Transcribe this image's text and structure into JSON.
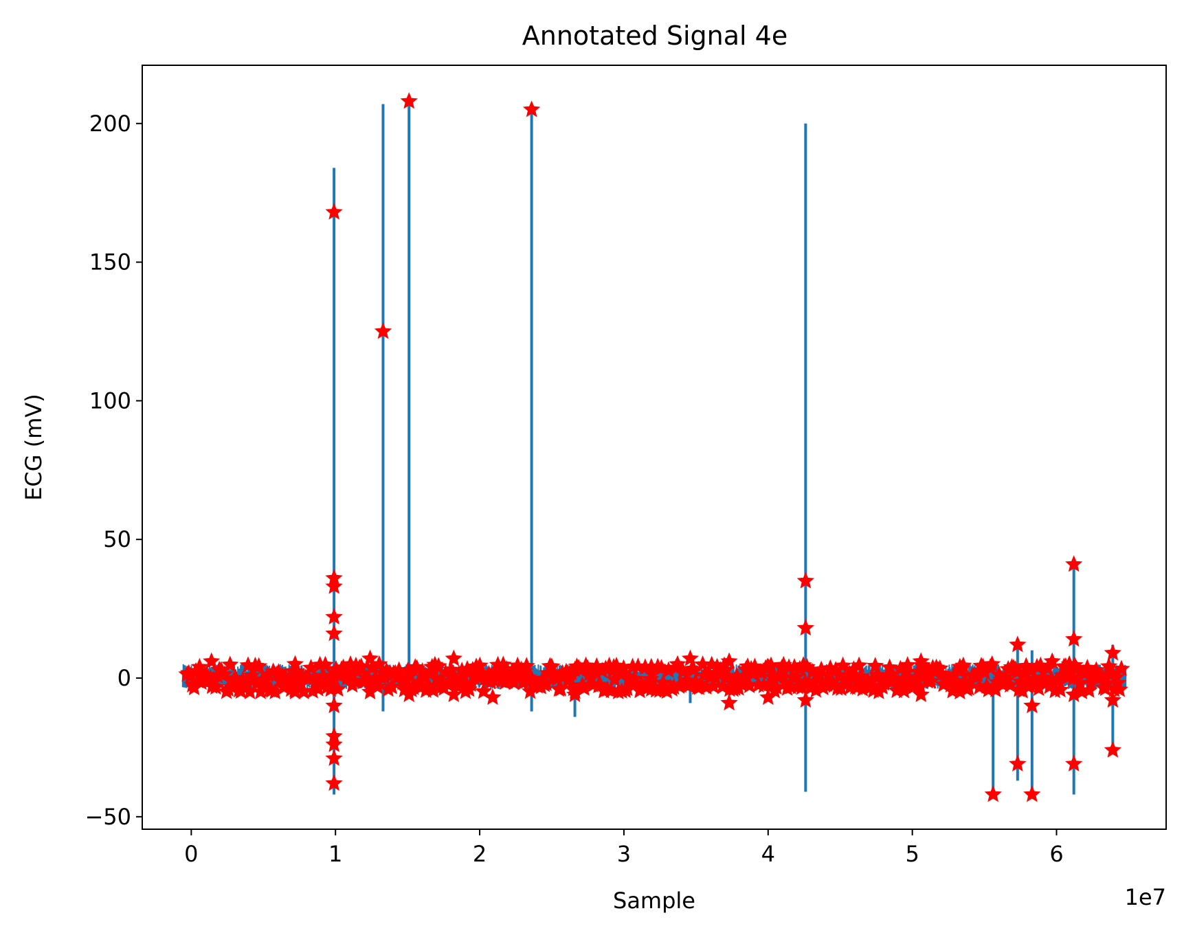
{
  "chart_data": {
    "type": "line",
    "title": "Annotated Signal 4e",
    "xlabel": "Sample",
    "ylabel": "ECG (mV)",
    "x_offset_label": "1e7",
    "x_scale": 10000000,
    "xlim": [
      -3400000,
      67600000
    ],
    "ylim": [
      -54.5,
      221
    ],
    "xticks": [
      0,
      10000000,
      20000000,
      30000000,
      40000000,
      50000000,
      60000000
    ],
    "xtick_labels": [
      "0",
      "1",
      "2",
      "3",
      "4",
      "5",
      "6"
    ],
    "yticks": [
      -50,
      0,
      50,
      100,
      150,
      200
    ],
    "ytick_labels": [
      "−50",
      "0",
      "50",
      "100",
      "150",
      "200"
    ],
    "grid": false,
    "colors": {
      "signal": "#1f77b4",
      "annotations": "#ff0000"
    },
    "series": [
      {
        "type": "line",
        "baseline_range": [
          -600000,
          64800000
        ],
        "baseline_amplitude": [
          -4,
          5
        ],
        "spikes": [
          {
            "x": 9900000,
            "min": -42,
            "max": 184
          },
          {
            "x": 13300000,
            "min": -12,
            "max": 207
          },
          {
            "x": 15100000,
            "min": -3,
            "max": 208
          },
          {
            "x": 23600000,
            "min": -12,
            "max": 205
          },
          {
            "x": 26600000,
            "min": -14,
            "max": 4
          },
          {
            "x": 34600000,
            "min": -9,
            "max": 3
          },
          {
            "x": 42600000,
            "min": -41,
            "max": 200
          },
          {
            "x": 50600000,
            "min": -3,
            "max": 8
          },
          {
            "x": 55600000,
            "min": -42,
            "max": 2
          },
          {
            "x": 57300000,
            "min": -37,
            "max": 11
          },
          {
            "x": 58300000,
            "min": -42,
            "max": 10
          },
          {
            "x": 61200000,
            "min": -42,
            "max": 41
          },
          {
            "x": 63900000,
            "min": -27,
            "max": 12
          }
        ]
      },
      {
        "type": "scatter",
        "marker": "star",
        "points": [
          [
            9900000,
            168
          ],
          [
            9900000,
            36
          ],
          [
            9900000,
            33
          ],
          [
            9900000,
            22
          ],
          [
            9900000,
            16
          ],
          [
            9900000,
            -10
          ],
          [
            9900000,
            -21
          ],
          [
            9900000,
            -24
          ],
          [
            9900000,
            -29
          ],
          [
            9900000,
            -38
          ],
          [
            13300000,
            125
          ],
          [
            15100000,
            208
          ],
          [
            23600000,
            205
          ],
          [
            42600000,
            35
          ],
          [
            42600000,
            18
          ],
          [
            42600000,
            -8
          ],
          [
            55600000,
            -42
          ],
          [
            57300000,
            12
          ],
          [
            57300000,
            -31
          ],
          [
            58300000,
            -42
          ],
          [
            58300000,
            -10
          ],
          [
            61200000,
            41
          ],
          [
            61200000,
            14
          ],
          [
            61200000,
            -31
          ],
          [
            63900000,
            -26
          ],
          [
            12400000,
            7
          ],
          [
            12400000,
            -5
          ],
          [
            15100000,
            -6
          ],
          [
            16700000,
            4
          ],
          [
            18200000,
            7
          ],
          [
            18200000,
            -6
          ],
          [
            20900000,
            -7
          ],
          [
            26600000,
            3
          ],
          [
            26600000,
            -6
          ],
          [
            29300000,
            4
          ],
          [
            31900000,
            4
          ],
          [
            31900000,
            -4
          ],
          [
            34600000,
            7
          ],
          [
            37300000,
            6
          ],
          [
            37300000,
            -9
          ],
          [
            40000000,
            4
          ],
          [
            40000000,
            -7
          ],
          [
            50600000,
            6
          ],
          [
            50600000,
            -6
          ],
          [
            53300000,
            4
          ],
          [
            53300000,
            -5
          ],
          [
            59700000,
            6
          ],
          [
            61200000,
            -6
          ],
          [
            63900000,
            9
          ],
          [
            63900000,
            -8
          ],
          [
            1400000,
            6
          ],
          [
            7200000,
            5
          ],
          [
            7200000,
            -5
          ]
        ],
        "baseline_band": [
          -5,
          5
        ]
      }
    ]
  }
}
